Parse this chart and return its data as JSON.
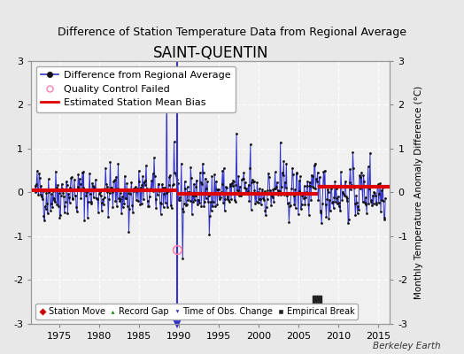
{
  "title": "SAINT-QUENTIN",
  "subtitle": "Difference of Station Temperature Data from Regional Average",
  "ylabel": "Monthly Temperature Anomaly Difference (°C)",
  "xlim": [
    1971.5,
    2016.5
  ],
  "ylim": [
    -3.0,
    3.0
  ],
  "yticks": [
    -3,
    -2,
    -1,
    0,
    1,
    2,
    3
  ],
  "xticks": [
    1975,
    1980,
    1985,
    1990,
    1995,
    2000,
    2005,
    2010,
    2015
  ],
  "bias_segments": [
    {
      "x_start": 1971.5,
      "x_end": 1989.75,
      "bias": 0.06
    },
    {
      "x_start": 1989.75,
      "x_end": 2007.5,
      "bias": -0.04
    },
    {
      "x_start": 2007.5,
      "x_end": 2016.5,
      "bias": 0.13
    }
  ],
  "obs_change_x": 1989.75,
  "empirical_break_x": 2007.33,
  "empirical_break_y": -2.45,
  "qc_fail_x": 1989.75,
  "qc_fail_y": -1.3,
  "background_color": "#e8e8e8",
  "plot_bg_color": "#f0f0f0",
  "line_color": "#3333cc",
  "dot_color": "#111111",
  "bias_color": "#dd0000",
  "grid_color": "#ffffff",
  "legend_fontsize": 8.0,
  "title_fontsize": 12,
  "subtitle_fontsize": 9,
  "tick_fontsize": 8,
  "seed": 42
}
